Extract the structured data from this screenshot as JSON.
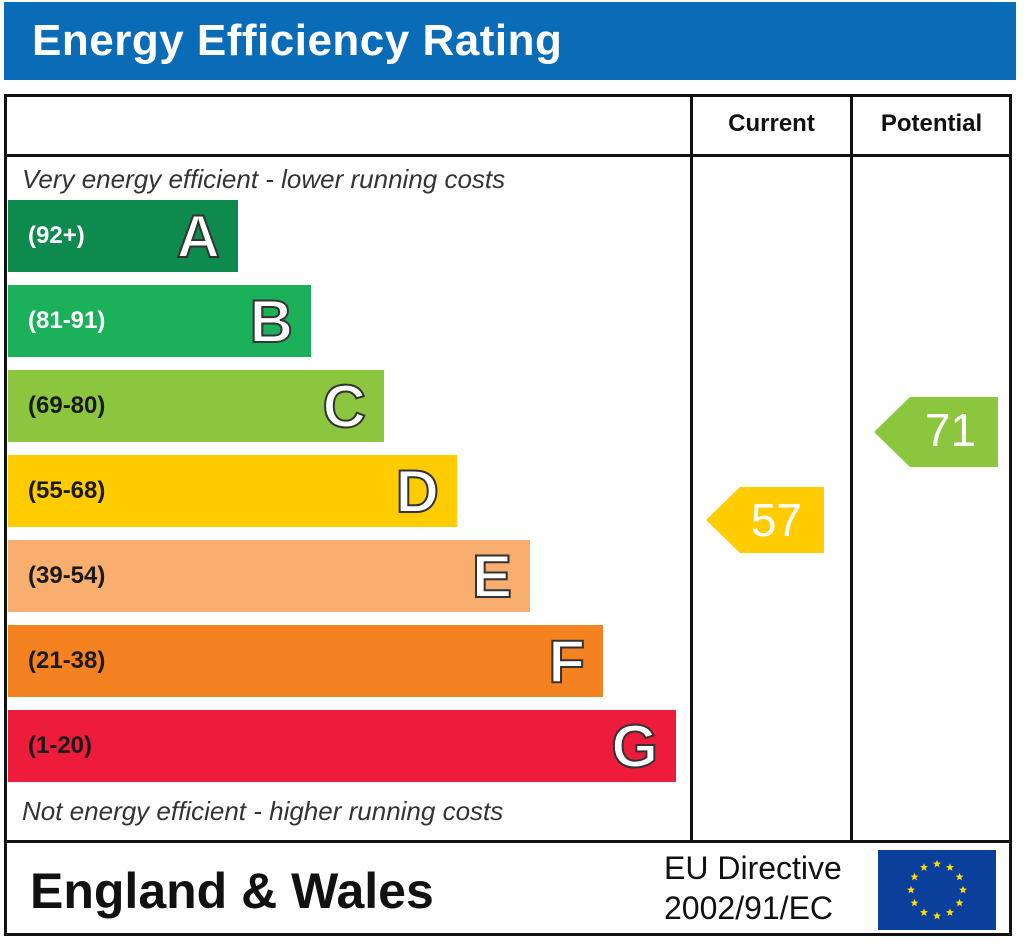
{
  "header": {
    "title": "Energy Efficiency Rating"
  },
  "columns": {
    "current": "Current",
    "potential": "Potential"
  },
  "captions": {
    "top": "Very energy efficient - lower running costs",
    "bottom": "Not energy efficient - higher running costs"
  },
  "chart_data": {
    "type": "bar",
    "title": "Energy Efficiency Rating",
    "categories": [
      "A",
      "B",
      "C",
      "D",
      "E",
      "F",
      "G"
    ],
    "ranges": [
      "(92+)",
      "(81-91)",
      "(69-80)",
      "(55-68)",
      "(39-54)",
      "(21-38)",
      "(1-20)"
    ],
    "range_min": [
      92,
      81,
      69,
      55,
      39,
      21,
      1
    ],
    "colors": [
      "#0f8a4f",
      "#1ab15a",
      "#8cc63f",
      "#ffcc00",
      "#f7ae6e",
      "#f58220",
      "#ed1c3a"
    ],
    "range_text_colors": [
      "#ffffff",
      "#ffffff",
      "#1a1a1a",
      "#1a1a1a",
      "#1a1a1a",
      "#1a1a1a",
      "#1a1a1a"
    ],
    "current": {
      "value": 57,
      "band": "D",
      "color": "#ffcc00"
    },
    "potential": {
      "value": 71,
      "band": "C",
      "color": "#8cc63f"
    }
  },
  "footer": {
    "country": "England & Wales",
    "directive_line1": "EU Directive",
    "directive_line2": "2002/91/EC"
  },
  "icons": {
    "flag": "eu-flag-icon"
  }
}
